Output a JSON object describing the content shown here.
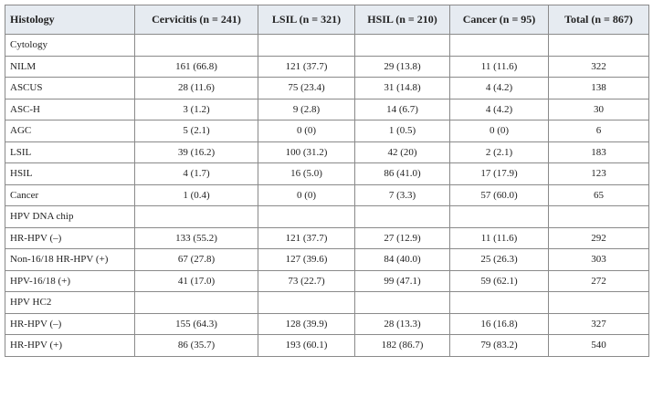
{
  "table": {
    "header": [
      "Histology",
      "Cervicitis (n = 241)",
      "LSIL (n = 321)",
      "HSIL (n = 210)",
      "Cancer (n = 95)",
      "Total (n = 867)"
    ],
    "rows": [
      [
        "Cytology"
      ],
      [
        "NILM",
        "161 (66.8)",
        "121 (37.7)",
        "29 (13.8)",
        "11 (11.6)",
        "322"
      ],
      [
        "ASCUS",
        "28 (11.6)",
        "75 (23.4)",
        "31 (14.8)",
        "4 (4.2)",
        "138"
      ],
      [
        "ASC-H",
        "3 (1.2)",
        "9 (2.8)",
        "14 (6.7)",
        "4 (4.2)",
        "30"
      ],
      [
        "AGC",
        "5 (2.1)",
        "0 (0)",
        "1 (0.5)",
        "0 (0)",
        "6"
      ],
      [
        "LSIL",
        "39 (16.2)",
        "100 (31.2)",
        "42 (20)",
        "2 (2.1)",
        "183"
      ],
      [
        "HSIL",
        "4 (1.7)",
        "16 (5.0)",
        "86 (41.0)",
        "17 (17.9)",
        "123"
      ],
      [
        "Cancer",
        "1 (0.4)",
        "0 (0)",
        "7 (3.3)",
        "57 (60.0)",
        "65"
      ],
      [
        "HPV DNA chip"
      ],
      [
        "HR-HPV (–)",
        "133 (55.2)",
        "121 (37.7)",
        "27 (12.9)",
        "11 (11.6)",
        "292"
      ],
      [
        "Non-16/18 HR-HPV (+)",
        "67 (27.8)",
        "127 (39.6)",
        "84 (40.0)",
        "25 (26.3)",
        "303"
      ],
      [
        "HPV-16/18 (+)",
        "41 (17.0)",
        "73 (22.7)",
        "99 (47.1)",
        "59 (62.1)",
        "272"
      ],
      [
        "HPV HC2"
      ],
      [
        "HR-HPV (–)",
        "155 (64.3)",
        "128 (39.9)",
        "28 (13.3)",
        "16 (16.8)",
        "327"
      ],
      [
        "HR-HPV (+)",
        "86 (35.7)",
        "193 (60.1)",
        "182 (86.7)",
        "79 (83.2)",
        "540"
      ]
    ]
  }
}
